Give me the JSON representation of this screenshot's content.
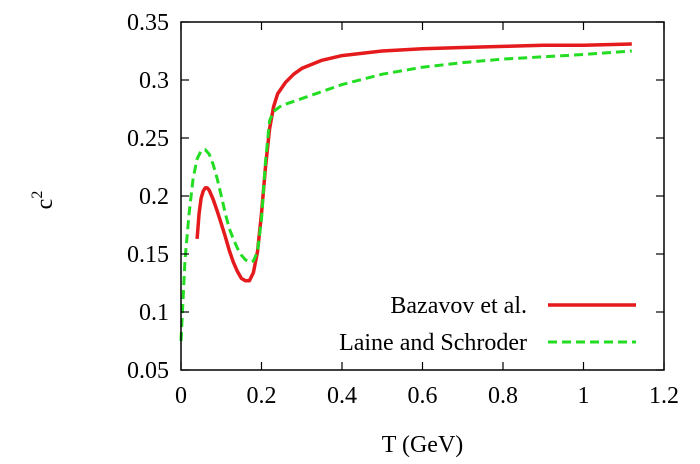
{
  "chart_data": {
    "type": "line",
    "xlabel": "T (GeV)",
    "ylabel": "c",
    "ylabel_superscript": "2",
    "xlim": [
      0,
      1.2
    ],
    "ylim": [
      0.05,
      0.35
    ],
    "xticks": [
      "0",
      "0.2",
      "0.4",
      "0.6",
      "0.8",
      "1",
      "1.2"
    ],
    "yticks": [
      "0.05",
      "0.1",
      "0.15",
      "0.2",
      "0.25",
      "0.3",
      "0.35"
    ],
    "grid": false,
    "legend_position": "bottom-right",
    "series": [
      {
        "name": "Bazavov et al.",
        "color": "#e41a1c",
        "style": "solid",
        "x": [
          0.04,
          0.045,
          0.05,
          0.055,
          0.06,
          0.065,
          0.07,
          0.08,
          0.09,
          0.1,
          0.11,
          0.12,
          0.13,
          0.14,
          0.15,
          0.16,
          0.17,
          0.18,
          0.19,
          0.2,
          0.21,
          0.22,
          0.23,
          0.24,
          0.26,
          0.28,
          0.3,
          0.35,
          0.4,
          0.5,
          0.6,
          0.7,
          0.8,
          0.9,
          1.0,
          1.12
        ],
        "y": [
          0.163,
          0.185,
          0.198,
          0.204,
          0.207,
          0.207,
          0.205,
          0.197,
          0.187,
          0.176,
          0.165,
          0.153,
          0.143,
          0.135,
          0.129,
          0.127,
          0.127,
          0.134,
          0.152,
          0.185,
          0.225,
          0.258,
          0.277,
          0.288,
          0.298,
          0.305,
          0.31,
          0.317,
          0.321,
          0.325,
          0.327,
          0.328,
          0.329,
          0.33,
          0.33,
          0.331
        ]
      },
      {
        "name": "Laine and Schroder",
        "color": "#22dd22",
        "style": "dashed",
        "x": [
          0.0,
          0.01,
          0.02,
          0.03,
          0.04,
          0.05,
          0.06,
          0.07,
          0.08,
          0.09,
          0.1,
          0.11,
          0.12,
          0.13,
          0.14,
          0.15,
          0.16,
          0.17,
          0.18,
          0.19,
          0.2,
          0.21,
          0.22,
          0.23,
          0.25,
          0.3,
          0.35,
          0.4,
          0.5,
          0.6,
          0.7,
          0.8,
          0.9,
          1.0,
          1.12
        ],
        "y": [
          0.075,
          0.145,
          0.185,
          0.215,
          0.232,
          0.239,
          0.24,
          0.236,
          0.227,
          0.215,
          0.2,
          0.185,
          0.172,
          0.163,
          0.155,
          0.149,
          0.145,
          0.143,
          0.144,
          0.152,
          0.18,
          0.23,
          0.265,
          0.273,
          0.278,
          0.284,
          0.29,
          0.296,
          0.305,
          0.311,
          0.315,
          0.318,
          0.32,
          0.322,
          0.325
        ]
      }
    ]
  }
}
